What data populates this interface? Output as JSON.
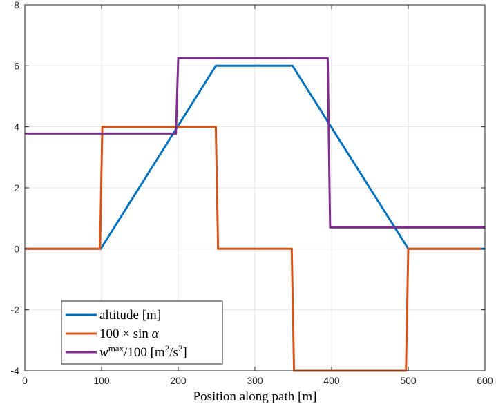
{
  "chart_data": {
    "type": "line",
    "title": "",
    "xlabel": "Position along path [m]",
    "ylabel": "",
    "xlim": [
      0,
      600
    ],
    "ylim": [
      -4,
      8
    ],
    "xticks": [
      0,
      100,
      200,
      300,
      400,
      500,
      600
    ],
    "yticks": [
      -4,
      -2,
      0,
      2,
      4,
      6,
      8
    ],
    "grid": true,
    "legend_position": "bottom-left",
    "series": [
      {
        "name": "altitude [m]",
        "color": "#0072BD",
        "x": [
          0,
          99,
          249,
          349,
          500,
          600
        ],
        "y": [
          0,
          0,
          6,
          6,
          0,
          0
        ]
      },
      {
        "name": "100 × sin α",
        "color": "#D95319",
        "x": [
          0,
          98,
          101,
          249,
          252,
          348,
          351,
          497,
          500,
          595
        ],
        "y": [
          0,
          0,
          4,
          4,
          0,
          0,
          -4,
          -4,
          0,
          0
        ]
      },
      {
        "name": "wmax/100 [m²/s²]",
        "color": "#7E2F8E",
        "x": [
          0,
          197,
          200,
          395,
          398,
          600
        ],
        "y": [
          3.78,
          3.78,
          6.25,
          6.25,
          0.7,
          0.7
        ]
      }
    ],
    "legend": {
      "items": [
        {
          "series": 0,
          "parts": [
            {
              "t": "altitude [m]"
            }
          ]
        },
        {
          "series": 1,
          "parts": [
            {
              "t": "100 × sin "
            },
            {
              "t": "α",
              "italic": true
            }
          ]
        },
        {
          "series": 2,
          "parts": [
            {
              "t": "w",
              "italic": true
            },
            {
              "t": "max",
              "sup": true
            },
            {
              "t": "/100 [m"
            },
            {
              "t": "2",
              "sup": true
            },
            {
              "t": "/s"
            },
            {
              "t": "2",
              "sup": true
            },
            {
              "t": "]"
            }
          ]
        }
      ]
    }
  }
}
